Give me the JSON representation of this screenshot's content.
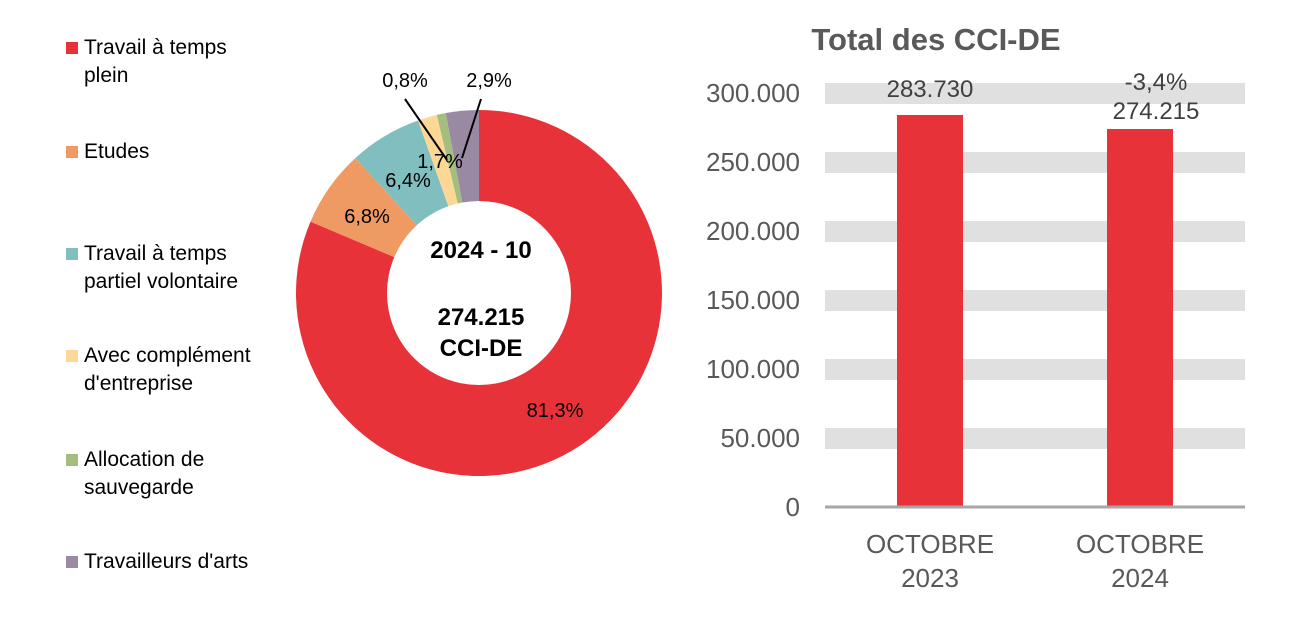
{
  "legend": {
    "items": [
      {
        "label_line1": "Travail à temps",
        "label_line2": "plein",
        "color": "#E8323A"
      },
      {
        "label_line1": "Etudes",
        "label_line2": "",
        "color": "#EF9A62"
      },
      {
        "label_line1": "Travail à temps",
        "label_line2": "partiel volontaire",
        "color": "#81BEBF"
      },
      {
        "label_line1": "Avec complément",
        "label_line2": "d'entreprise",
        "color": "#FDD795"
      },
      {
        "label_line1": "Allocation de",
        "label_line2": "sauvegarde",
        "color": "#A3BE7E"
      },
      {
        "label_line1": "Travailleurs d'arts",
        "label_line2": "",
        "color": "#9A89A3"
      }
    ]
  },
  "donut": {
    "center_period": "2024 - 10",
    "center_value": "274.215",
    "center_unit": "CCI-DE",
    "labels": {
      "full_time": "81,3%",
      "studies": "6,8%",
      "part_time": "6,4%",
      "company_supplement": "1,7%",
      "safeguard": "0,8%",
      "artists": "2,9%"
    }
  },
  "bar_chart": {
    "title": "Total des CCI-DE",
    "y_ticks": [
      "0",
      "50.000",
      "100.000",
      "150.000",
      "200.000",
      "250.000",
      "300.000"
    ],
    "bars": [
      {
        "cat_line1": "OCTOBRE",
        "cat_line2": "2023",
        "value_label": "283.730",
        "change_label": ""
      },
      {
        "cat_line1": "OCTOBRE",
        "cat_line2": "2024",
        "value_label": "274.215",
        "change_label": "-3,4%"
      }
    ]
  },
  "chart_data": [
    {
      "type": "pie",
      "variant": "donut",
      "title": "2024 - 10 — 274.215 CCI-DE",
      "categories": [
        "Travail à temps plein",
        "Etudes",
        "Travail à temps partiel volontaire",
        "Avec complément d'entreprise",
        "Allocation de sauvegarde",
        "Travailleurs d'arts"
      ],
      "values": [
        81.3,
        6.8,
        6.4,
        1.7,
        0.8,
        2.9
      ],
      "unit": "%",
      "colors": [
        "#E8323A",
        "#EF9A62",
        "#81BEBF",
        "#FDD795",
        "#A3BE7E",
        "#9A89A3"
      ],
      "center_text": [
        "2024 - 10",
        "274.215",
        "CCI-DE"
      ],
      "legend_position": "left"
    },
    {
      "type": "bar",
      "title": "Total des CCI-DE",
      "categories": [
        "OCTOBRE 2023",
        "OCTOBRE 2024"
      ],
      "values": [
        283730,
        274215
      ],
      "data_labels": [
        "283.730",
        "274.215"
      ],
      "annotations": [
        "-3,4%"
      ],
      "xlabel": "",
      "ylabel": "",
      "ylim": [
        0,
        300000
      ],
      "y_ticks": [
        0,
        50000,
        100000,
        150000,
        200000,
        250000,
        300000
      ],
      "grid": "horizontal bands",
      "color": "#E8323A"
    }
  ]
}
